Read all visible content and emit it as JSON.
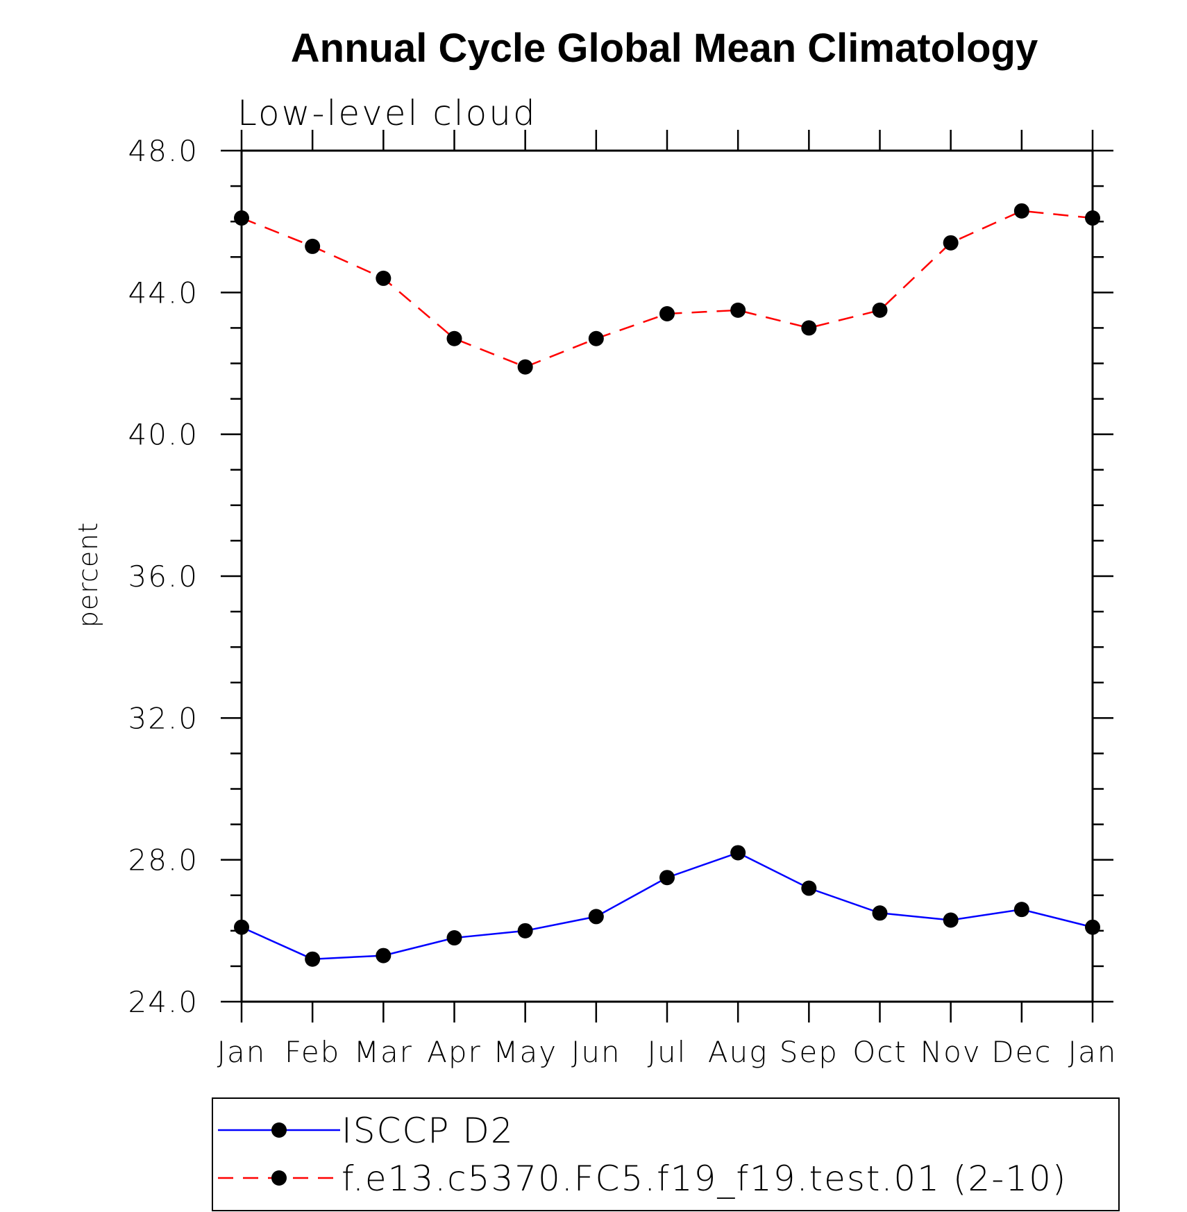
{
  "chart_data": {
    "type": "line",
    "title": "Annual Cycle Global Mean Climatology",
    "subtitle": "Low-level cloud",
    "xlabel": "",
    "ylabel": "percent",
    "categories": [
      "Jan",
      "Feb",
      "Mar",
      "Apr",
      "May",
      "Jun",
      "Jul",
      "Aug",
      "Sep",
      "Oct",
      "Nov",
      "Dec",
      "Jan"
    ],
    "ylim": [
      24.0,
      48.0
    ],
    "yticks": [
      "24.0",
      "28.0",
      "32.0",
      "36.0",
      "40.0",
      "44.0",
      "48.0"
    ],
    "yminor_step": 1.0,
    "grid": false,
    "legend_position": "bottom",
    "series": [
      {
        "name": "ISCCP D2",
        "color": "#0000ff",
        "dash": "solid",
        "marker": "filled-circle",
        "values": [
          26.1,
          25.2,
          25.3,
          25.8,
          26.0,
          26.4,
          27.5,
          28.2,
          27.2,
          26.5,
          26.3,
          26.6,
          26.1
        ]
      },
      {
        "name": "f.e13.c5370.FC5.f19_f19.test.01 (2-10)",
        "color": "#ff0000",
        "dash": "dashed",
        "marker": "filled-circle",
        "values": [
          46.1,
          45.3,
          44.4,
          42.7,
          41.9,
          42.7,
          43.4,
          43.5,
          43.0,
          43.5,
          45.4,
          46.3,
          46.1
        ]
      }
    ]
  }
}
